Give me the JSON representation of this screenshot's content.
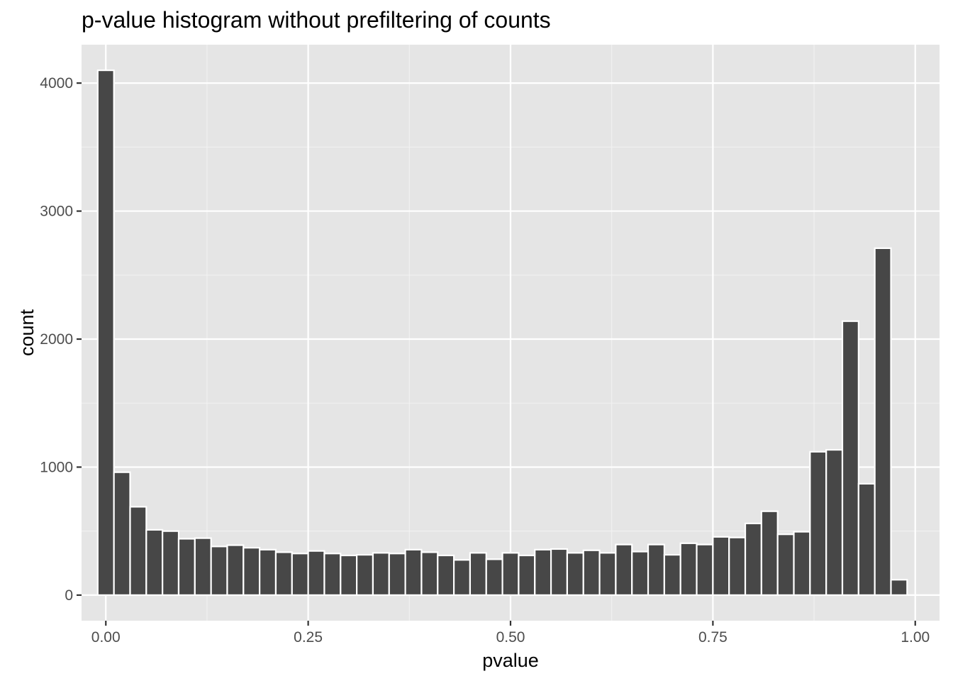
{
  "chart_data": {
    "type": "bar",
    "subtype": "histogram",
    "title": "p-value histogram without prefiltering of counts",
    "xlabel": "pvalue",
    "ylabel": "count",
    "xlim": [
      -0.03,
      1.03
    ],
    "ylim": [
      -200,
      4300
    ],
    "x_ticks": [
      0.0,
      0.25,
      0.5,
      0.75,
      1.0
    ],
    "x_tick_labels": [
      "0.00",
      "0.25",
      "0.50",
      "0.75",
      "1.00"
    ],
    "y_ticks": [
      0,
      1000,
      2000,
      3000,
      4000
    ],
    "y_tick_labels": [
      "0",
      "1000",
      "2000",
      "3000",
      "4000"
    ],
    "grid": true,
    "bin_start": -0.01,
    "bin_width": 0.02,
    "values": [
      4100,
      960,
      690,
      510,
      500,
      440,
      445,
      380,
      390,
      370,
      355,
      335,
      325,
      345,
      325,
      310,
      315,
      330,
      325,
      355,
      335,
      310,
      275,
      330,
      280,
      330,
      310,
      355,
      360,
      330,
      350,
      330,
      395,
      340,
      395,
      315,
      405,
      395,
      455,
      450,
      560,
      655,
      475,
      495,
      1120,
      1135,
      2140,
      870,
      2710,
      120
    ],
    "colors": {
      "panel_background": "#e5e5e5",
      "grid_major": "#ffffff",
      "grid_minor": "#f2f2f2",
      "bar_fill": "#474747",
      "bar_outline": "#ffffff"
    }
  }
}
